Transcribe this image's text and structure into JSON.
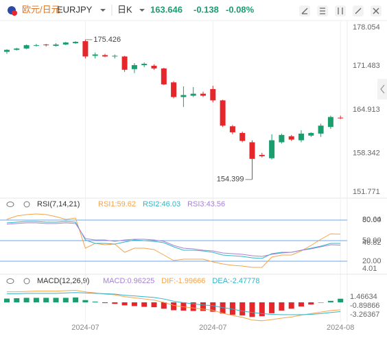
{
  "header": {
    "name": "欧元/日元",
    "symbol": "EURJPY",
    "period": "日K",
    "price": 163.646,
    "change": -0.138,
    "change_pct": "-0.08%"
  },
  "chart_data": [
    {
      "type": "candlestick",
      "up_color": "#1a9e6e",
      "down_color": "#e5262b",
      "ylim": [
        151.7,
        178.3
      ],
      "yticks": [
        178.054,
        171.483,
        164.913,
        158.342,
        151.771
      ],
      "annotations": {
        "high": 175.426,
        "low": 154.399
      },
      "categories": [
        null,
        null,
        null,
        null,
        null,
        null,
        null,
        null,
        "2024-07",
        null,
        null,
        null,
        null,
        null,
        null,
        null,
        null,
        null,
        null,
        null,
        null,
        "2024-07",
        null,
        null,
        null,
        null,
        null,
        null,
        null,
        null,
        null,
        null,
        null,
        null,
        "2024-08"
      ],
      "open": [
        173.6,
        173.9,
        174.1,
        174.5,
        174.7,
        174.5,
        174.7,
        174.9,
        175.2,
        173.0,
        173.1,
        172.9,
        172.9,
        171.0,
        171.6,
        171.5,
        171.1,
        169.0,
        166.8,
        167.0,
        167.3,
        168.0,
        166.3,
        162.4,
        161.4,
        160.0,
        158.1,
        157.6,
        160.0,
        160.9,
        160.3,
        161.0,
        161.3,
        162.3,
        163.7
      ],
      "high": [
        174.0,
        174.2,
        174.7,
        174.8,
        174.8,
        174.9,
        175.1,
        175.2,
        175.426,
        173.5,
        173.3,
        173.2,
        173.0,
        171.9,
        172.0,
        171.7,
        171.2,
        169.2,
        168.4,
        168.3,
        167.6,
        168.5,
        166.4,
        162.6,
        161.6,
        160.3,
        158.4,
        161.2,
        161.3,
        161.1,
        161.8,
        161.5,
        162.8,
        164.0,
        164.0
      ],
      "low": [
        173.3,
        173.8,
        174.0,
        174.4,
        174.4,
        174.4,
        174.6,
        174.8,
        172.6,
        172.6,
        172.8,
        172.6,
        170.6,
        170.4,
        171.3,
        170.9,
        168.6,
        166.6,
        165.3,
        166.8,
        166.8,
        166.0,
        162.3,
        161.2,
        160.0,
        154.399,
        157.7,
        157.4,
        159.8,
        160.2,
        160.0,
        160.8,
        160.8,
        162.0,
        163.5
      ],
      "close": [
        173.9,
        174.1,
        174.6,
        174.6,
        174.6,
        174.7,
        175.0,
        175.1,
        172.9,
        173.2,
        172.9,
        173.0,
        170.9,
        171.6,
        171.8,
        171.1,
        168.7,
        166.8,
        167.1,
        167.3,
        167.0,
        166.3,
        162.5,
        161.5,
        160.2,
        157.5,
        157.9,
        160.3,
        161.1,
        160.4,
        161.3,
        161.4,
        162.5,
        163.8,
        163.646
      ]
    },
    {
      "type": "line",
      "title": "RSI(7,14,21)",
      "ylim": [
        0,
        100
      ],
      "yticks": [
        {
          "value": 80,
          "label": "80.00"
        },
        {
          "value": 50,
          "label": "50.00"
        },
        {
          "value": 20,
          "label": "20.00"
        }
      ],
      "extra_labels": [
        80.64,
        46.82,
        4.01
      ],
      "ref_color": "#6aa6e8",
      "series": [
        {
          "name": "RSI1:59.62",
          "color": "#f5a34a",
          "values": [
            81,
            86,
            88,
            89,
            88,
            85,
            81,
            83,
            39,
            46,
            44,
            45,
            33,
            39,
            39,
            37,
            29,
            21,
            23,
            23,
            23,
            19,
            16,
            14,
            13,
            11,
            11,
            26,
            29,
            29,
            35,
            43,
            52,
            60,
            59.62
          ]
        },
        {
          "name": "RSI2:46.03",
          "color": "#2fb5c8",
          "values": [
            76,
            77,
            78,
            78,
            77,
            77,
            78,
            77,
            51,
            46,
            46,
            45,
            48,
            51,
            50,
            49,
            47,
            41,
            36,
            36,
            35,
            33,
            29,
            28,
            27,
            25,
            24,
            31,
            33,
            33,
            36,
            39,
            42,
            46,
            46.03
          ]
        },
        {
          "name": "RSI3:43.56",
          "color": "#a77fd6",
          "values": [
            74,
            75,
            76,
            76,
            75,
            75,
            76,
            75,
            53,
            51,
            51,
            49,
            51,
            52,
            52,
            51,
            49,
            43,
            39,
            38,
            36,
            35,
            32,
            31,
            30,
            28,
            27,
            30,
            32,
            33,
            36,
            38,
            41,
            44,
            43.56
          ]
        }
      ]
    },
    {
      "type": "macd",
      "title": "MACD(12,26,9)",
      "ylim": [
        -5.3,
        4.2
      ],
      "yticks": [
        1.46634,
        -0.89866,
        -3.26367
      ],
      "up_color": "#1a9e6e",
      "down_color": "#e5262b",
      "series": [
        {
          "name": "MACD:0.96225",
          "color": "#a77fd6",
          "values": [
            1.0,
            1.1,
            1.2,
            1.2,
            1.2,
            1.2,
            1.2,
            1.3,
            0.6,
            0.2,
            -0.2,
            -0.4,
            -0.8,
            -1.0,
            -1.2,
            -1.3,
            -1.7,
            -2.1,
            -2.2,
            -2.3,
            -2.3,
            -2.5,
            -3.0,
            -3.3,
            -3.5,
            -3.9,
            -3.7,
            -2.9,
            -2.2,
            -1.7,
            -1.1,
            -0.6,
            -0.1,
            0.4,
            0.96225
          ]
        },
        {
          "name": "DIF:-1.99666",
          "color": "#f5a34a",
          "values": [
            2.8,
            2.8,
            2.9,
            3.0,
            3.0,
            3.0,
            3.1,
            3.2,
            2.8,
            2.5,
            2.2,
            2.0,
            1.5,
            1.2,
            0.9,
            0.6,
            0.0,
            -0.8,
            -1.2,
            -1.5,
            -1.8,
            -2.1,
            -2.9,
            -3.5,
            -4.0,
            -4.7,
            -4.9,
            -4.6,
            -4.2,
            -3.9,
            -3.4,
            -3.0,
            -2.6,
            -2.2,
            -1.99666
          ]
        },
        {
          "name": "DEA:-2.47778",
          "color": "#2fb5c8",
          "values": [
            2.3,
            2.3,
            2.4,
            2.4,
            2.4,
            2.4,
            2.5,
            2.6,
            2.5,
            2.4,
            2.3,
            2.2,
            1.9,
            1.7,
            1.5,
            1.3,
            0.9,
            0.3,
            -0.1,
            -0.4,
            -0.7,
            -0.9,
            -1.4,
            -1.8,
            -2.3,
            -2.7,
            -3.0,
            -3.2,
            -3.3,
            -3.3,
            -3.3,
            -3.2,
            -3.0,
            -2.7,
            -2.47778
          ]
        }
      ]
    }
  ]
}
